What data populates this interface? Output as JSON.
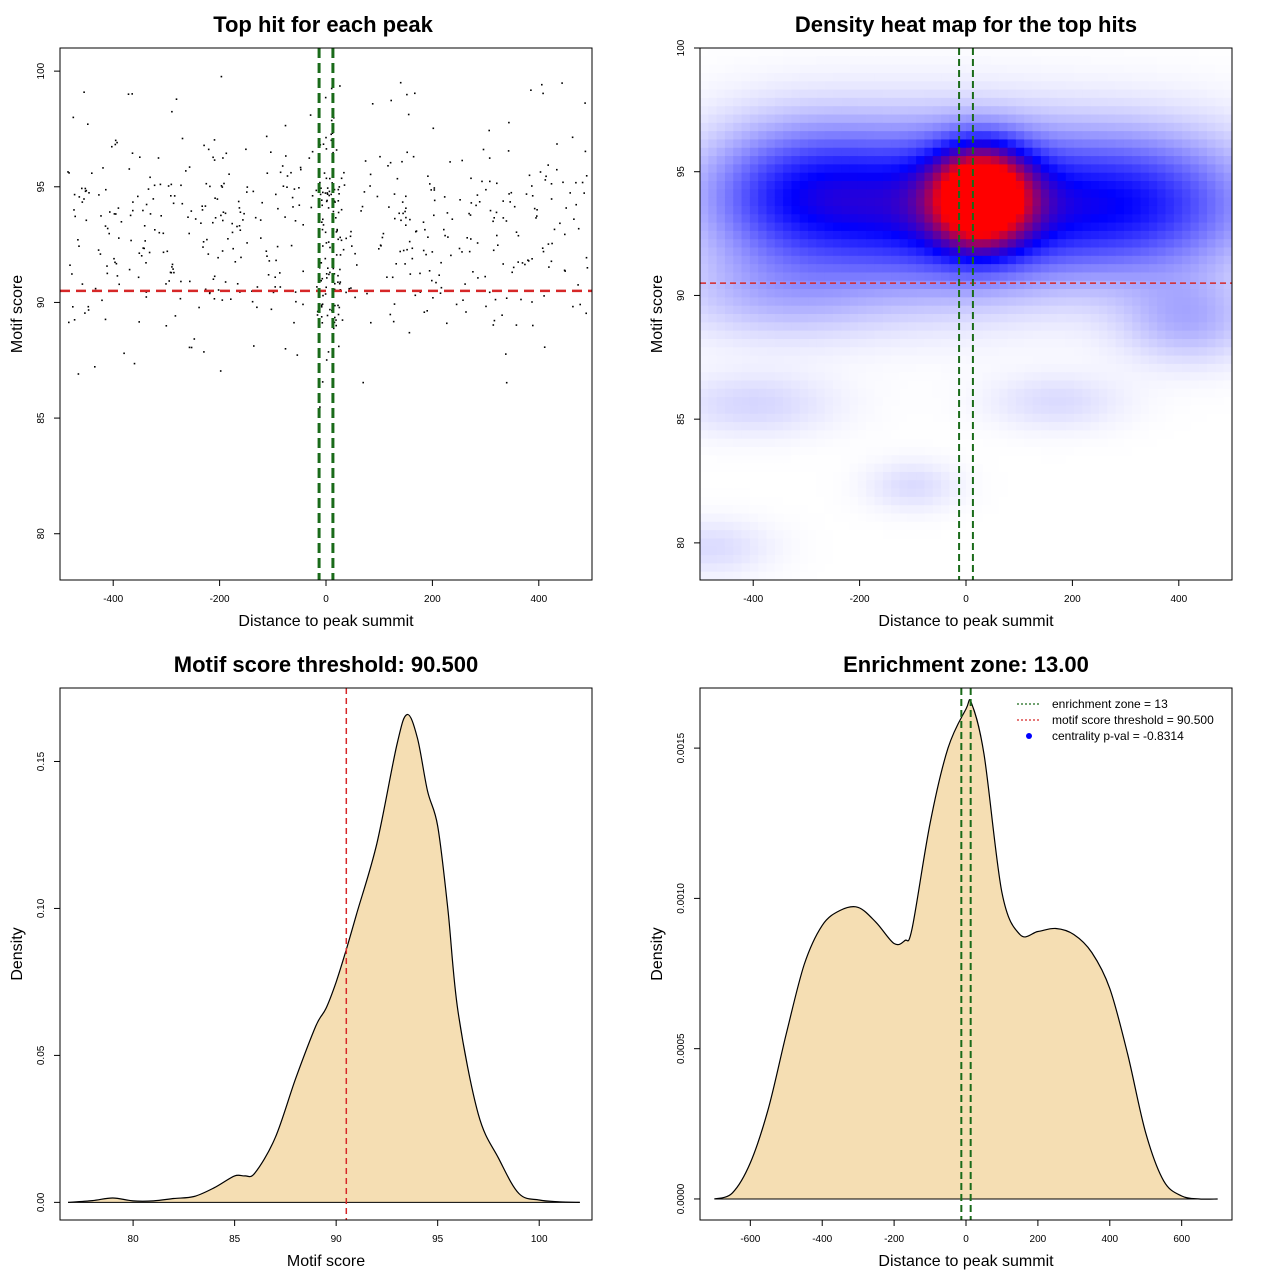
{
  "colors": {
    "green": "#1a6b1a",
    "red": "#d62728",
    "fill": "#f5deb3",
    "points": "#000000"
  },
  "chart_data": [
    {
      "id": "scatter",
      "type": "scatter",
      "title": "Top hit for each peak",
      "xlabel": "Distance to peak summit",
      "ylabel": "Motif score",
      "xlim": [
        -500,
        500
      ],
      "ylim": [
        78,
        101
      ],
      "xticks": [
        -400,
        -200,
        0,
        200,
        400
      ],
      "yticks": [
        80,
        85,
        90,
        95,
        100
      ],
      "hline": 90.5,
      "vlines": [
        -13,
        13
      ],
      "point_count": 600,
      "point_seed": 7
    },
    {
      "id": "heatmap",
      "type": "heatmap",
      "title": "Density heat map for the top hits",
      "xlabel": "Distance to peak summit",
      "ylabel": "Motif score",
      "xlim": [
        -500,
        500
      ],
      "ylim": [
        78.5,
        100
      ],
      "xticks": [
        -400,
        -200,
        0,
        200,
        400
      ],
      "yticks": [
        80,
        85,
        90,
        95,
        100
      ],
      "hline": 90.5,
      "vlines": [
        -13,
        13
      ],
      "blobs": [
        {
          "x": 30,
          "y": 94.0,
          "sx": 60,
          "sy": 1.3,
          "w": 1.0
        },
        {
          "x": -20,
          "y": 93.5,
          "sx": 150,
          "sy": 2.2,
          "w": 0.45
        },
        {
          "x": -300,
          "y": 94.0,
          "sx": 140,
          "sy": 2.0,
          "w": 0.45
        },
        {
          "x": 300,
          "y": 93.7,
          "sx": 170,
          "sy": 2.0,
          "w": 0.45
        },
        {
          "x": 420,
          "y": 89.0,
          "sx": 90,
          "sy": 1.2,
          "w": 0.15
        },
        {
          "x": -350,
          "y": 90.0,
          "sx": 150,
          "sy": 1.3,
          "w": 0.12
        },
        {
          "x": -400,
          "y": 85.6,
          "sx": 110,
          "sy": 0.9,
          "w": 0.08
        },
        {
          "x": 170,
          "y": 85.7,
          "sx": 90,
          "sy": 0.8,
          "w": 0.07
        },
        {
          "x": -100,
          "y": 82.3,
          "sx": 60,
          "sy": 0.7,
          "w": 0.07
        },
        {
          "x": -480,
          "y": 79.8,
          "sx": 80,
          "sy": 0.8,
          "w": 0.07
        }
      ]
    },
    {
      "id": "density_score",
      "type": "area",
      "title": "Motif score threshold: 90.500",
      "xlabel": "Motif score",
      "ylabel": "Density",
      "xlim": [
        76.4,
        102.6
      ],
      "ylim": [
        -0.006,
        0.175
      ],
      "xticks": [
        80,
        85,
        90,
        95,
        100
      ],
      "yticks": [
        0.0,
        0.05,
        0.1,
        0.15
      ],
      "ytick_labels": [
        "0.00",
        "0.05",
        "0.10",
        "0.15"
      ],
      "vline": 90.5,
      "x": [
        76.8,
        78.0,
        79.0,
        80.0,
        81.0,
        82.0,
        83.0,
        84.0,
        85.0,
        85.5,
        86.0,
        87.0,
        88.0,
        89.0,
        89.5,
        90.0,
        90.5,
        91.0,
        92.0,
        93.0,
        93.5,
        94.0,
        94.5,
        95.0,
        95.5,
        96.0,
        97.0,
        98.0,
        99.0,
        100.0,
        101.0,
        102.0
      ],
      "values": [
        0.0,
        0.0006,
        0.0015,
        0.0005,
        0.0005,
        0.0013,
        0.002,
        0.005,
        0.009,
        0.009,
        0.01,
        0.022,
        0.042,
        0.06,
        0.066,
        0.075,
        0.086,
        0.098,
        0.122,
        0.156,
        0.166,
        0.158,
        0.14,
        0.128,
        0.1,
        0.065,
        0.03,
        0.015,
        0.003,
        0.0008,
        0.0002,
        0.0
      ]
    },
    {
      "id": "density_dist",
      "type": "area",
      "title": "Enrichment zone: 13.00",
      "xlabel": "Distance to peak summit",
      "ylabel": "Density",
      "xlim": [
        -740,
        740
      ],
      "ylim": [
        -7e-05,
        0.0017
      ],
      "xticks": [
        -600,
        -400,
        -200,
        0,
        200,
        400,
        600
      ],
      "yticks": [
        0.0,
        0.0005,
        0.001,
        0.0015
      ],
      "ytick_labels": [
        "0.0000",
        "0.0005",
        "0.0010",
        "0.0015"
      ],
      "vlines": [
        -13,
        13
      ],
      "x": [
        -700,
        -650,
        -600,
        -550,
        -500,
        -450,
        -400,
        -350,
        -300,
        -250,
        -200,
        -170,
        -150,
        -100,
        -50,
        0,
        15,
        50,
        100,
        150,
        200,
        250,
        300,
        350,
        400,
        450,
        500,
        550,
        600,
        650,
        700
      ],
      "values": [
        0.0,
        2e-05,
        0.00012,
        0.0003,
        0.00055,
        0.00078,
        0.00091,
        0.00096,
        0.00097,
        0.00092,
        0.00085,
        0.00086,
        0.0009,
        0.00125,
        0.0015,
        0.00163,
        0.00165,
        0.00148,
        0.00102,
        0.00088,
        0.00089,
        0.0009,
        0.00088,
        0.00082,
        0.0007,
        0.00048,
        0.00022,
        6e-05,
        1e-05,
        0.0,
        0.0
      ],
      "legend": [
        {
          "label": "enrichment zone = 13",
          "style": "dotted",
          "color": "#1a6b1a"
        },
        {
          "label": "motif score threshold = 90.500",
          "style": "dotted",
          "color": "#d62728"
        },
        {
          "label": "centrality p-val = -0.8314",
          "style": "point",
          "color": "#0000ff"
        }
      ],
      "legend_position": "top-right"
    }
  ]
}
